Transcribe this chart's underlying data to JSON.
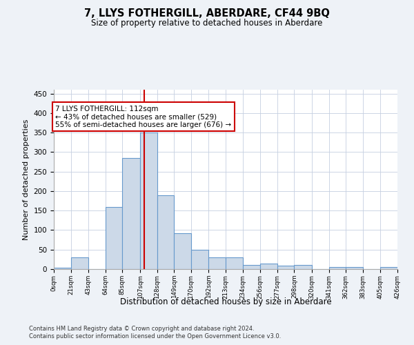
{
  "title": "7, LLYS FOTHERGILL, ABERDARE, CF44 9BQ",
  "subtitle": "Size of property relative to detached houses in Aberdare",
  "xlabel": "Distribution of detached houses by size in Aberdare",
  "ylabel": "Number of detached properties",
  "bar_color": "#ccd9e8",
  "bar_edge_color": "#6699cc",
  "vline_value": 112,
  "vline_color": "#cc0000",
  "annotation_title": "7 LLYS FOTHERGILL: 112sqm",
  "annotation_line1": "← 43% of detached houses are smaller (529)",
  "annotation_line2": "55% of semi-detached houses are larger (676) →",
  "annotation_box_color": "#cc0000",
  "bins": [
    0,
    21,
    43,
    64,
    85,
    107,
    128,
    149,
    170,
    192,
    213,
    234,
    256,
    277,
    298,
    320,
    341,
    362,
    383,
    405,
    426
  ],
  "counts": [
    4,
    30,
    0,
    160,
    285,
    350,
    190,
    92,
    50,
    30,
    30,
    10,
    15,
    8,
    10,
    0,
    5,
    5,
    0,
    5
  ],
  "ylim": [
    0,
    460
  ],
  "yticks": [
    0,
    50,
    100,
    150,
    200,
    250,
    300,
    350,
    400,
    450
  ],
  "footer_line1": "Contains HM Land Registry data © Crown copyright and database right 2024.",
  "footer_line2": "Contains public sector information licensed under the Open Government Licence v3.0.",
  "background_color": "#eef2f7",
  "plot_background": "#ffffff",
  "grid_color": "#c5cfe0"
}
